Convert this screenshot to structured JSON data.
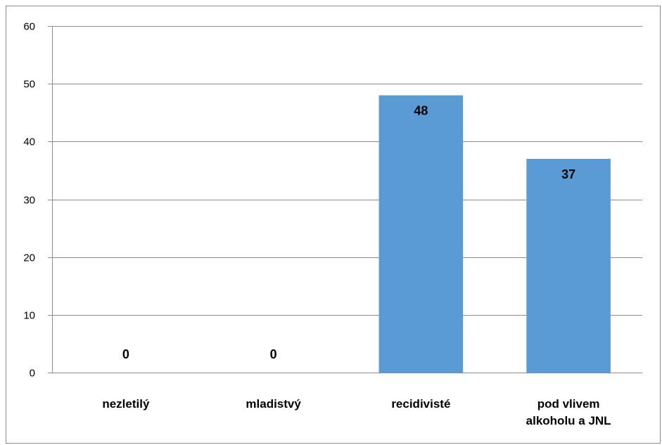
{
  "chart_data": {
    "type": "bar",
    "categories": [
      [
        "nezletilý"
      ],
      [
        "mladistvý"
      ],
      [
        "recidivisté"
      ],
      [
        "pod vlivem",
        "alkoholu a JNL"
      ]
    ],
    "values": [
      0,
      0,
      48,
      37
    ],
    "data_labels": [
      "0",
      "0",
      "48",
      "37"
    ],
    "ylim": [
      0,
      60
    ],
    "yticks": [
      "0",
      "10",
      "20",
      "30",
      "40",
      "50",
      "60"
    ],
    "ytick_values": [
      0,
      10,
      20,
      30,
      40,
      50,
      60
    ],
    "grid": true,
    "bar_color": "#5b9bd5",
    "title": "",
    "xlabel": "",
    "ylabel": ""
  }
}
